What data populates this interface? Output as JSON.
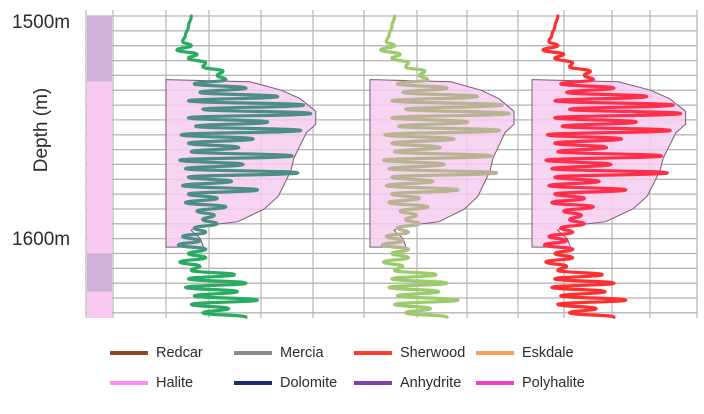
{
  "chart_data": {
    "type": "line",
    "ylabel": "Depth (m)",
    "ylim": [
      1500,
      1635
    ],
    "y_ticks": [
      "1500m",
      "1600m"
    ],
    "grid": true,
    "lithology_column": [
      {
        "from": 1492,
        "to": 1523,
        "rock": "Anhydrite"
      },
      {
        "from": 1523,
        "to": 1604,
        "rock": "Halite"
      },
      {
        "from": 1604,
        "to": 1622,
        "rock": "Anhydrite"
      },
      {
        "from": 1622,
        "to": 1636,
        "rock": "Halite"
      }
    ],
    "halite_envelope": {
      "color": "#f7ccf1",
      "depths": [
        1522,
        1523,
        1527,
        1531,
        1537,
        1543,
        1547,
        1553,
        1559,
        1565,
        1571,
        1577,
        1583,
        1589,
        1591,
        1593,
        1597,
        1601
      ],
      "widths": [
        0.0,
        0.54,
        0.74,
        0.86,
        0.96,
        0.96,
        0.9,
        0.86,
        0.82,
        0.8,
        0.76,
        0.72,
        0.63,
        0.46,
        0.24,
        0.16,
        0.22,
        0.24
      ]
    },
    "tracks": [
      {
        "curve_color": "#2aab62",
        "halite_curve_color": "#4b8f84"
      },
      {
        "curve_color": "#9ccb6b",
        "halite_curve_color": "#b7b393"
      },
      {
        "curve_color": "#ff2f2f",
        "halite_curve_color": "#ff2f4a"
      }
    ],
    "log_curve": {
      "depths": [
        1492,
        1497,
        1501,
        1504,
        1506,
        1508,
        1510,
        1512,
        1514,
        1516,
        1518,
        1520,
        1522,
        1524,
        1526,
        1528,
        1530,
        1532,
        1534,
        1536,
        1538,
        1540,
        1542,
        1544,
        1546,
        1548,
        1550,
        1552,
        1554,
        1556,
        1558,
        1560,
        1562,
        1564,
        1566,
        1568,
        1570,
        1572,
        1574,
        1576,
        1578,
        1580,
        1582,
        1584,
        1586,
        1588,
        1590,
        1592,
        1594,
        1596,
        1598,
        1600,
        1602,
        1604,
        1606,
        1608,
        1610,
        1612,
        1614,
        1616,
        1618,
        1620,
        1622,
        1624,
        1626,
        1628,
        1630,
        1632,
        1634
      ],
      "values": [
        0.12,
        0.1,
        0.08,
        0.06,
        0.12,
        0.02,
        0.16,
        0.1,
        0.22,
        0.2,
        0.34,
        0.3,
        0.36,
        0.14,
        0.5,
        0.18,
        0.72,
        0.1,
        0.9,
        0.2,
        0.95,
        0.1,
        0.65,
        0.15,
        0.88,
        0.05,
        0.55,
        0.1,
        0.45,
        0.12,
        0.82,
        0.04,
        0.48,
        0.08,
        0.86,
        0.1,
        0.4,
        0.06,
        0.58,
        0.1,
        0.3,
        0.08,
        0.36,
        0.16,
        0.28,
        0.2,
        0.3,
        0.14,
        0.22,
        0.06,
        0.18,
        0.03,
        0.22,
        0.1,
        0.22,
        0.04,
        0.18,
        0.12,
        0.42,
        0.1,
        0.5,
        0.08,
        0.44,
        0.14,
        0.58,
        0.12,
        0.38,
        0.2,
        0.5
      ]
    },
    "legend": [
      {
        "name": "Redcar",
        "color": "#8b4a25"
      },
      {
        "name": "Mercia",
        "color": "#8a8a8a"
      },
      {
        "name": "Sherwood",
        "color": "#ff3b2f"
      },
      {
        "name": "Eskdale",
        "color": "#f3a261"
      },
      {
        "name": "Halite",
        "color": "#ff8cf0"
      },
      {
        "name": "Dolomite",
        "color": "#1a2d6e"
      },
      {
        "name": "Anhydrite",
        "color": "#7e3fa8"
      },
      {
        "name": "Polyhalite",
        "color": "#f23cc0"
      }
    ]
  }
}
